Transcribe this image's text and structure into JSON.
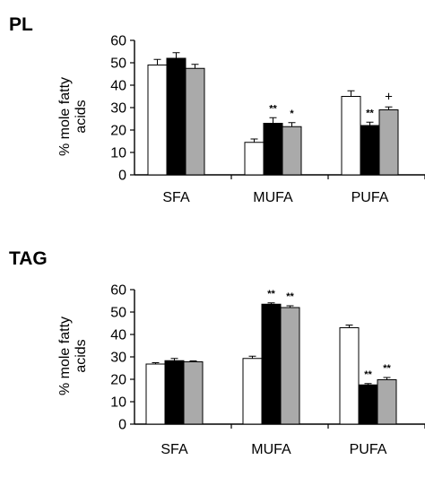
{
  "chart_data": [
    {
      "type": "bar",
      "title": "PL",
      "ylabel": "% mole fatty acids",
      "xlabel": "",
      "ylim": [
        0,
        60
      ],
      "yticks": [
        0,
        10,
        20,
        30,
        40,
        50,
        60
      ],
      "categories": [
        "SFA",
        "MUFA",
        "PUFA"
      ],
      "series": [
        {
          "color": "#ffffff",
          "values": [
            49,
            14.5,
            35
          ],
          "errors": [
            2.5,
            1.5,
            2.5
          ]
        },
        {
          "color": "#000000",
          "values": [
            52,
            23,
            22
          ],
          "errors": [
            2.5,
            2.5,
            1.5
          ]
        },
        {
          "color": "#aaaaaa",
          "values": [
            47.5,
            21.5,
            29
          ],
          "errors": [
            1.8,
            1.8,
            1.3
          ]
        }
      ],
      "annotations": [
        {
          "category": 1,
          "series": 1,
          "text": "**"
        },
        {
          "category": 1,
          "series": 2,
          "text": "*"
        },
        {
          "category": 2,
          "series": 1,
          "text": "**"
        },
        {
          "category": 2,
          "series": 2,
          "text": "+"
        }
      ]
    },
    {
      "type": "bar",
      "title": "TAG",
      "ylabel": "% mole fatty acids",
      "xlabel": "",
      "ylim": [
        0,
        60
      ],
      "yticks": [
        0,
        10,
        20,
        30,
        40,
        50,
        60
      ],
      "categories": [
        "SFA",
        "MUFA",
        "PUFA"
      ],
      "series": [
        {
          "color": "#ffffff",
          "values": [
            26.8,
            29.3,
            43
          ],
          "errors": [
            0.6,
            1.0,
            1.2
          ]
        },
        {
          "color": "#000000",
          "values": [
            28.3,
            53.5,
            17.5
          ],
          "errors": [
            1.0,
            0.6,
            0.6
          ]
        },
        {
          "color": "#aaaaaa",
          "values": [
            27.8,
            52,
            19.8
          ],
          "errors": [
            0.4,
            0.8,
            1.0
          ]
        }
      ],
      "annotations": [
        {
          "category": 1,
          "series": 1,
          "text": "**"
        },
        {
          "category": 1,
          "series": 2,
          "text": "**"
        },
        {
          "category": 2,
          "series": 1,
          "text": "**"
        },
        {
          "category": 2,
          "series": 2,
          "text": "**"
        }
      ]
    }
  ]
}
